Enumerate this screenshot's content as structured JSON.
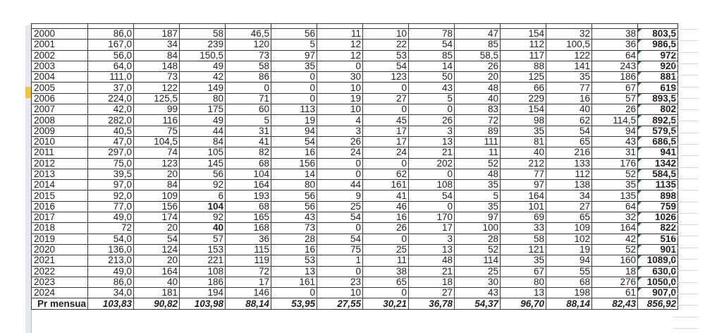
{
  "selected_row_year": "2005",
  "colors": {
    "border": "#3a3a3a",
    "row_header": "#e4e8ee",
    "selected_row": "#f5c342",
    "error_marker": "#1e7b34"
  },
  "rows": [
    {
      "year": "2000",
      "values": [
        "86,0",
        "187",
        "58",
        "46,5",
        "56",
        "11",
        "10",
        "78",
        "47",
        "154",
        "32",
        "38"
      ],
      "total": "803,5"
    },
    {
      "year": "2001",
      "values": [
        "167,0",
        "34",
        "239",
        "120",
        "5",
        "12",
        "22",
        "54",
        "85",
        "112",
        "100,5",
        "36"
      ],
      "total": "986,5"
    },
    {
      "year": "2002",
      "values": [
        "56,0",
        "84",
        "150,5",
        "73",
        "97",
        "12",
        "53",
        "85",
        "58,5",
        "117",
        "122",
        "64"
      ],
      "total": "972"
    },
    {
      "year": "2003",
      "values": [
        "64,0",
        "148",
        "49",
        "58",
        "35",
        "0",
        "54",
        "14",
        "26",
        "88",
        "141",
        "243"
      ],
      "total": "920"
    },
    {
      "year": "2004",
      "values": [
        "111,0",
        "73",
        "42",
        "86",
        "0",
        "30",
        "123",
        "50",
        "20",
        "125",
        "35",
        "186"
      ],
      "total": "881"
    },
    {
      "year": "2005",
      "values": [
        "37,0",
        "122",
        "149",
        "0",
        "0",
        "10",
        "0",
        "43",
        "48",
        "66",
        "77",
        "67"
      ],
      "total": "619"
    },
    {
      "year": "2006",
      "values": [
        "224,0",
        "125,5",
        "80",
        "71",
        "0",
        "19",
        "27",
        "5",
        "40",
        "229",
        "16",
        "57"
      ],
      "total": "893,5"
    },
    {
      "year": "2007",
      "values": [
        "42,0",
        "99",
        "175",
        "60",
        "113",
        "10",
        "0",
        "0",
        "83",
        "154",
        "40",
        "26"
      ],
      "total": "802"
    },
    {
      "year": "2008",
      "values": [
        "282,0",
        "116",
        "49",
        "5",
        "19",
        "4",
        "45",
        "26",
        "72",
        "98",
        "62",
        "114,5"
      ],
      "total": "892,5"
    },
    {
      "year": "2009",
      "values": [
        "40,5",
        "75",
        "44",
        "31",
        "94",
        "3",
        "17",
        "3",
        "89",
        "35",
        "54",
        "94"
      ],
      "total": "579,5"
    },
    {
      "year": "2010",
      "values": [
        "47,0",
        "104,5",
        "84",
        "41",
        "54",
        "26",
        "17",
        "13",
        "111",
        "81",
        "65",
        "43"
      ],
      "total": "686,5"
    },
    {
      "year": "2011",
      "values": [
        "297,0",
        "74",
        "105",
        "82",
        "16",
        "24",
        "24",
        "21",
        "11",
        "40",
        "216",
        "31"
      ],
      "total": "941"
    },
    {
      "year": "2012",
      "values": [
        "75,0",
        "123",
        "145",
        "68",
        "156",
        "0",
        "0",
        "202",
        "52",
        "212",
        "133",
        "176"
      ],
      "total": "1342"
    },
    {
      "year": "2013",
      "values": [
        "39,5",
        "20",
        "56",
        "104",
        "14",
        "0",
        "62",
        "0",
        "48",
        "77",
        "112",
        "52"
      ],
      "total": "584,5"
    },
    {
      "year": "2014",
      "values": [
        "97,0",
        "84",
        "92",
        "164",
        "80",
        "44",
        "161",
        "108",
        "35",
        "97",
        "138",
        "35"
      ],
      "total": "1135"
    },
    {
      "year": "2015",
      "values": [
        "92,0",
        "109",
        "6",
        "193",
        "56",
        "9",
        "41",
        "54",
        "5",
        "164",
        "34",
        "135"
      ],
      "total": "898"
    },
    {
      "year": "2016",
      "values": [
        "77,0",
        "156",
        "104",
        "68",
        "56",
        "25",
        "46",
        "0",
        "35",
        "101",
        "27",
        "64"
      ],
      "total": "759",
      "bold_col": 2
    },
    {
      "year": "2017",
      "values": [
        "49,0",
        "174",
        "92",
        "165",
        "43",
        "54",
        "16",
        "170",
        "97",
        "69",
        "65",
        "32"
      ],
      "total": "1026"
    },
    {
      "year": "2018",
      "values": [
        "72",
        "20",
        "40",
        "168",
        "73",
        "0",
        "26",
        "17",
        "100",
        "33",
        "109",
        "164"
      ],
      "total": "822",
      "bold_col": 2
    },
    {
      "year": "2019",
      "values": [
        "54,0",
        "54",
        "57",
        "36",
        "28",
        "54",
        "0",
        "3",
        "28",
        "58",
        "102",
        "42"
      ],
      "total": "516"
    },
    {
      "year": "2020",
      "values": [
        "136,0",
        "124",
        "153",
        "115",
        "16",
        "75",
        "25",
        "13",
        "52",
        "121",
        "19",
        "52"
      ],
      "total": "901"
    },
    {
      "year": "2021",
      "values": [
        "213,0",
        "20",
        "221",
        "119",
        "53",
        "1",
        "11",
        "48",
        "114",
        "35",
        "94",
        "160"
      ],
      "total": "1089,0"
    },
    {
      "year": "2022",
      "values": [
        "49,0",
        "164",
        "108",
        "72",
        "13",
        "0",
        "38",
        "21",
        "25",
        "67",
        "55",
        "18"
      ],
      "total": "630,0"
    },
    {
      "year": "2023",
      "values": [
        "86,0",
        "40",
        "186",
        "17",
        "161",
        "23",
        "65",
        "18",
        "30",
        "80",
        "68",
        "276"
      ],
      "total": "1050,0"
    },
    {
      "year": "2024",
      "values": [
        "34,0",
        "181",
        "194",
        "146",
        "0",
        "10",
        "0",
        "27",
        "43",
        "13",
        "198",
        "61"
      ],
      "total": "907,0"
    }
  ],
  "average_row": {
    "label": "Pr mensua",
    "values": [
      "103,83",
      "90,82",
      "103,98",
      "88,14",
      "53,95",
      "27,55",
      "30,21",
      "36,78",
      "54,37",
      "96,70",
      "88,14",
      "82,43"
    ],
    "total": "856,92"
  }
}
